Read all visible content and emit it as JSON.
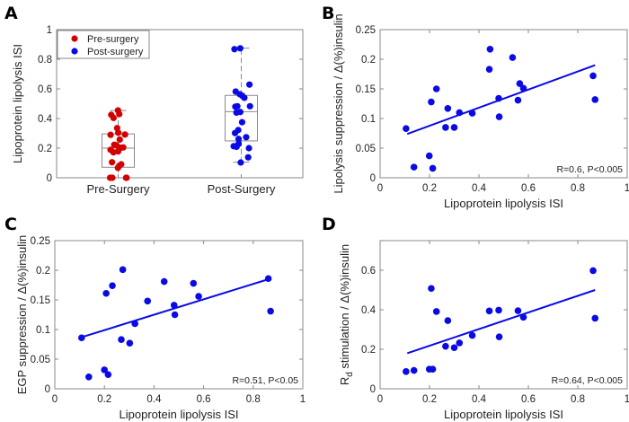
{
  "chart_data": [
    {
      "panel": "A",
      "type": "box",
      "ylabel": "Lipoprotein lipolysis ISI",
      "categories": [
        "Pre-Surgery",
        "Post-Surgery"
      ],
      "ylim": [
        0,
        1
      ],
      "yticks": [
        0,
        0.2,
        0.4,
        0.6,
        0.8,
        1
      ],
      "legend": {
        "position": "top-left",
        "entries": [
          {
            "name": "Pre-surgery",
            "color": "#d40000"
          },
          {
            "name": "Post-surgery",
            "color": "#0a0ae6"
          }
        ]
      },
      "boxes": [
        {
          "category": "Pre-Surgery",
          "whisker_low": 0,
          "q1": 0.071,
          "median": 0.2,
          "q3": 0.296,
          "whisker_high": 0.454
        },
        {
          "category": "Post-Surgery",
          "whisker_low": 0.105,
          "q1": 0.249,
          "median": 0.446,
          "q3": 0.556,
          "whisker_high": 0.875
        }
      ],
      "series": [
        {
          "name": "Pre-surgery",
          "color": "#d40000",
          "values": [
            0.455,
            0.43,
            0.425,
            0.404,
            0.335,
            0.304,
            0.29,
            0.292,
            0.258,
            0.219,
            0.223,
            0.205,
            0.203,
            0.189,
            0.178,
            0.172,
            0.091,
            0.105,
            0.081,
            0.067,
            0,
            0,
            0,
            0
          ]
        },
        {
          "name": "Post-surgery",
          "color": "#0a0ae6",
          "values": [
            0.868,
            0.874,
            0.629,
            0.582,
            0.564,
            0.554,
            0.54,
            0.483,
            0.48,
            0.483,
            0.444,
            0.44,
            0.375,
            0.322,
            0.302,
            0.274,
            0.262,
            0.229,
            0.213,
            0.2,
            0.209,
            0.138,
            0.103
          ]
        }
      ]
    },
    {
      "panel": "B",
      "type": "scatter",
      "xlabel": "Lipoprotein lipolysis ISI",
      "ylabel": "Lipolysis suppression / Δ(%)insulin",
      "xlim": [
        0,
        1
      ],
      "ylim": [
        0,
        0.25
      ],
      "xticks": [
        0,
        0.2,
        0.4,
        0.6,
        0.8,
        1
      ],
      "yticks": [
        0,
        0.05,
        0.1,
        0.15,
        0.2,
        0.25
      ],
      "color": "#0a0ae6",
      "annotation": "R=0.6, P<0.005",
      "fit": [
        [
          0.11,
          0.074
        ],
        [
          0.87,
          0.19
        ]
      ],
      "x": [
        0.105,
        0.137,
        0.199,
        0.207,
        0.213,
        0.228,
        0.265,
        0.274,
        0.3,
        0.321,
        0.373,
        0.442,
        0.445,
        0.48,
        0.482,
        0.536,
        0.558,
        0.565,
        0.58,
        0.862,
        0.87
      ],
      "y": [
        0.083,
        0.018,
        0.037,
        0.128,
        0.016,
        0.15,
        0.085,
        0.117,
        0.085,
        0.11,
        0.109,
        0.183,
        0.217,
        0.134,
        0.103,
        0.203,
        0.131,
        0.159,
        0.151,
        0.172,
        0.132
      ]
    },
    {
      "panel": "C",
      "type": "scatter",
      "xlabel": "Lipoprotein lipolysis ISI",
      "ylabel": "EGP suppression / Δ(%)insulin",
      "xlim": [
        0,
        1
      ],
      "ylim": [
        0,
        0.25
      ],
      "xticks": [
        0,
        0.2,
        0.4,
        0.6,
        0.8,
        1
      ],
      "yticks": [
        0,
        0.05,
        0.1,
        0.15,
        0.2,
        0.25
      ],
      "color": "#0a0ae6",
      "annotation": "R=0.51, P<0.05",
      "fit": [
        [
          0.108,
          0.087
        ],
        [
          0.87,
          0.186
        ]
      ],
      "x": [
        0.108,
        0.137,
        0.2,
        0.207,
        0.215,
        0.232,
        0.268,
        0.274,
        0.302,
        0.323,
        0.374,
        0.441,
        0.481,
        0.484,
        0.559,
        0.58,
        0.861,
        0.87
      ],
      "y": [
        0.086,
        0.02,
        0.032,
        0.161,
        0.024,
        0.174,
        0.083,
        0.201,
        0.077,
        0.11,
        0.148,
        0.181,
        0.141,
        0.125,
        0.178,
        0.156,
        0.186,
        0.131
      ]
    },
    {
      "panel": "D",
      "type": "scatter",
      "xlabel": "Lipoprotein lipolysis ISI",
      "ylabel": "R",
      "ylabel_sub": "d",
      "ylabel_rest": " stimulation / Δ(%)insulin",
      "xlim": [
        0,
        1
      ],
      "ylim": [
        0,
        0.75
      ],
      "xticks": [
        0,
        0.2,
        0.4,
        0.6,
        0.8,
        1
      ],
      "yticks": [
        0,
        0.2,
        0.4,
        0.6
      ],
      "color": "#0a0ae6",
      "annotation": "R=0.64, P<0.005",
      "fit": [
        [
          0.11,
          0.18
        ],
        [
          0.87,
          0.5
        ]
      ],
      "x": [
        0.105,
        0.137,
        0.199,
        0.207,
        0.213,
        0.228,
        0.265,
        0.274,
        0.3,
        0.321,
        0.373,
        0.442,
        0.48,
        0.482,
        0.558,
        0.58,
        0.862,
        0.87
      ],
      "y": [
        0.087,
        0.093,
        0.099,
        0.508,
        0.099,
        0.391,
        0.215,
        0.345,
        0.208,
        0.232,
        0.27,
        0.394,
        0.398,
        0.263,
        0.395,
        0.362,
        0.598,
        0.357
      ]
    }
  ]
}
